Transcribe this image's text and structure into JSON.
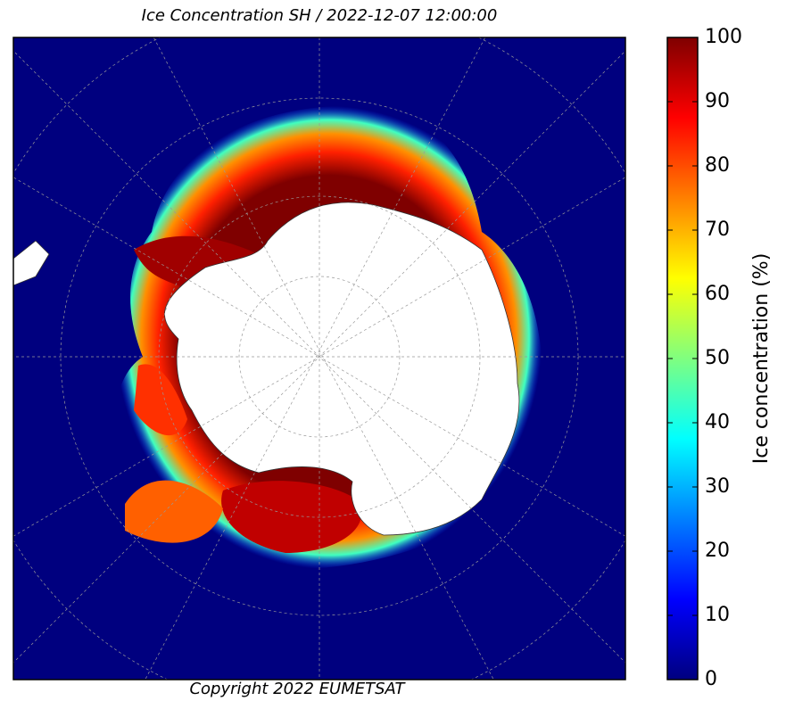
{
  "title": "Ice Concentration SH / 2022-12-07 12:00:00",
  "copyright": "Copyright 2022 EUMETSAT",
  "colorbar": {
    "label": "Ice concentration (%)",
    "lim": [
      0,
      100
    ],
    "ticks": [
      0,
      10,
      20,
      30,
      40,
      50,
      60,
      70,
      80,
      90,
      100
    ],
    "colormap": "jet"
  }
}
